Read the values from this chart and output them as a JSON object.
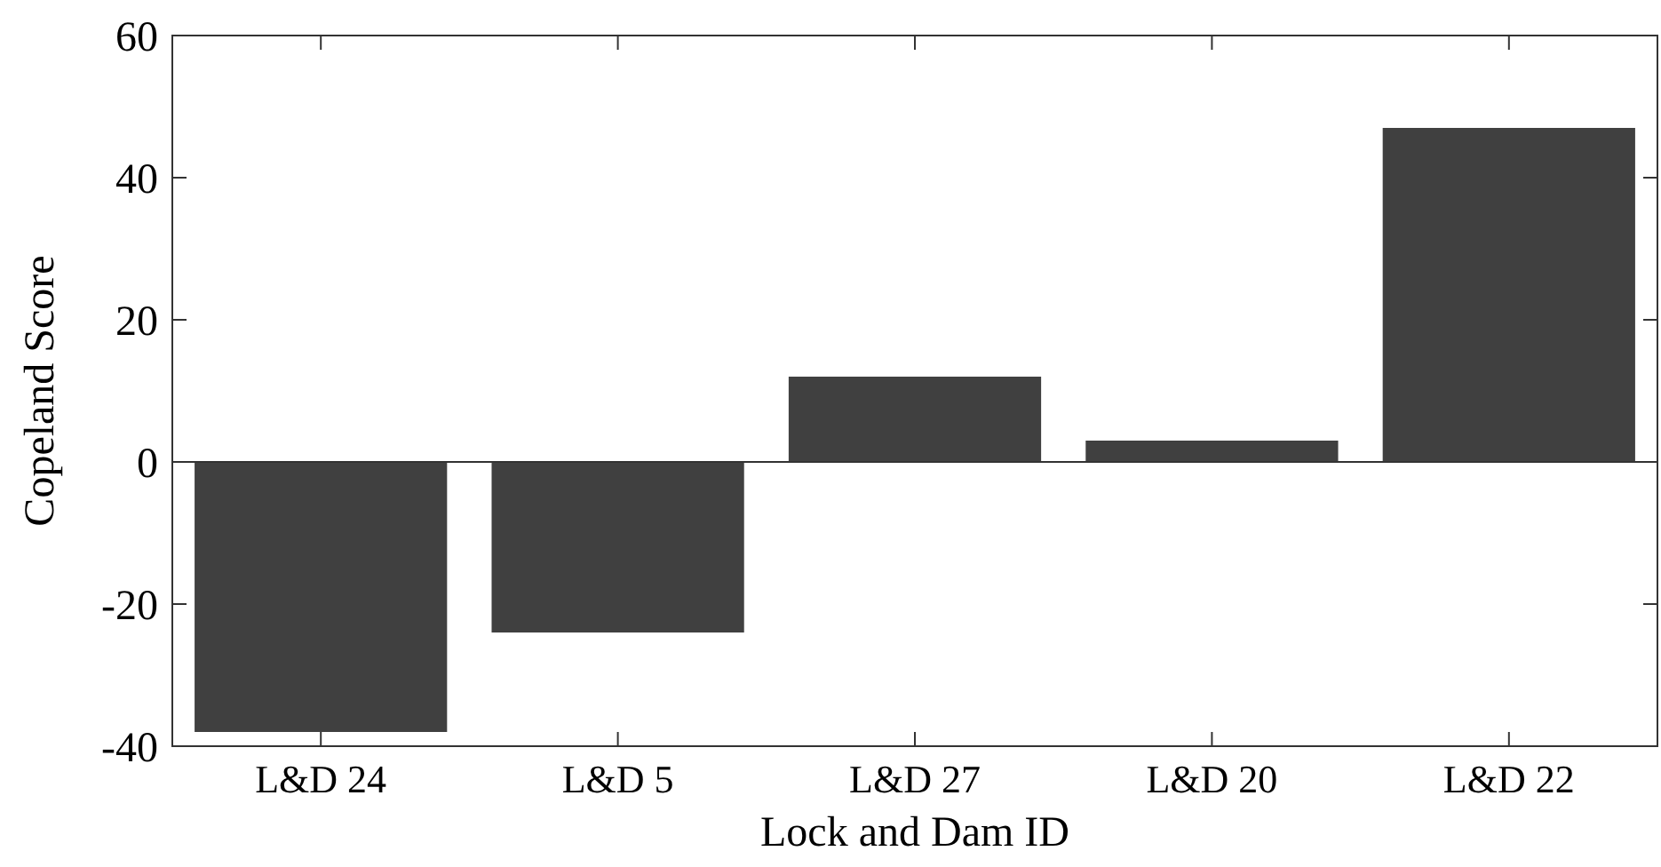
{
  "chart_data": {
    "type": "bar",
    "xlabel": "Lock and Dam ID",
    "ylabel": "Copeland Score",
    "categories": [
      "L&D 24",
      "L&D 5",
      "L&D 27",
      "L&D 20",
      "L&D 22"
    ],
    "values": [
      -38,
      -24,
      12,
      3,
      47
    ],
    "color": "#404040",
    "ylim": [
      -40,
      60
    ],
    "yticks": [
      -40,
      -20,
      0,
      20,
      40,
      60
    ]
  }
}
